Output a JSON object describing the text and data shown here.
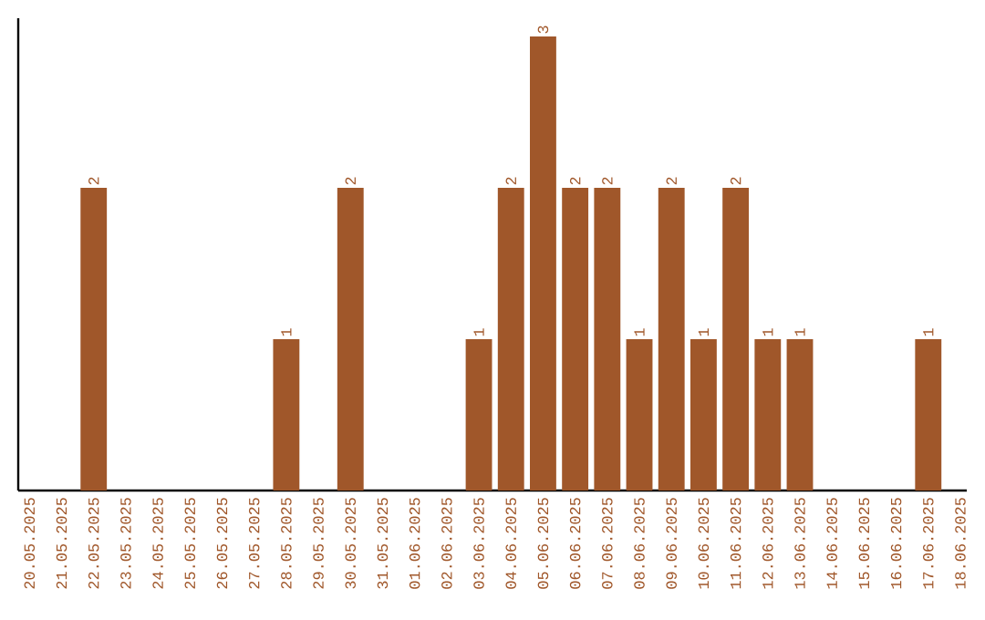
{
  "chart_data": {
    "type": "bar",
    "categories": [
      "20.05.2025",
      "21.05.2025",
      "22.05.2025",
      "23.05.2025",
      "24.05.2025",
      "25.05.2025",
      "26.05.2025",
      "27.05.2025",
      "28.05.2025",
      "29.05.2025",
      "30.05.2025",
      "31.05.2025",
      "01.06.2025",
      "02.06.2025",
      "03.06.2025",
      "04.06.2025",
      "05.06.2025",
      "06.06.2025",
      "07.06.2025",
      "08.06.2025",
      "09.06.2025",
      "10.06.2025",
      "11.06.2025",
      "12.06.2025",
      "13.06.2025",
      "14.06.2025",
      "15.06.2025",
      "16.06.2025",
      "17.06.2025",
      "18.06.2025"
    ],
    "values": [
      0,
      0,
      2,
      0,
      0,
      0,
      0,
      0,
      1,
      0,
      2,
      0,
      0,
      0,
      1,
      2,
      3,
      2,
      2,
      1,
      2,
      1,
      2,
      1,
      1,
      0,
      0,
      0,
      1,
      0
    ],
    "value_labels": [
      null,
      null,
      "2",
      null,
      null,
      null,
      null,
      null,
      "1",
      null,
      "2",
      null,
      null,
      null,
      "1",
      "2",
      "3",
      "2",
      "2",
      "1",
      "2",
      "1",
      "2",
      "1",
      "1",
      null,
      null,
      null,
      "1",
      null
    ],
    "color": "#a0572a",
    "ylim": [
      0,
      3.12
    ],
    "tick_labels": "x"
  }
}
